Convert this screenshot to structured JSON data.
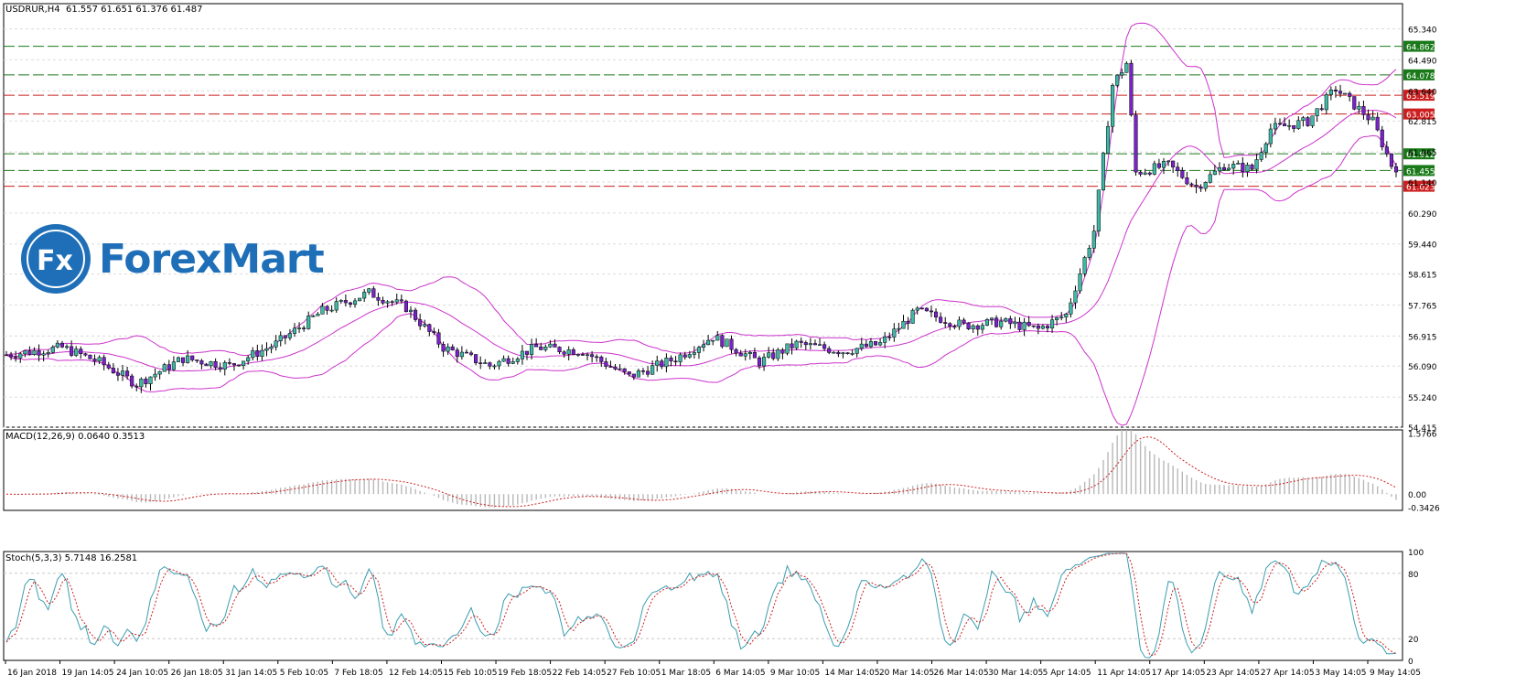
{
  "header": {
    "symbol": "USDRUR,H4",
    "ohlc": "61.557 61.651 61.376 61.487"
  },
  "logo": {
    "text": "ForexMart",
    "icon": "fx-logo-icon"
  },
  "colors": {
    "bull": "#3fb9a7",
    "bear": "#7a22c9",
    "band": "#cc33cc",
    "green_line": "#1a7a1a",
    "red_line": "#cc1f1f",
    "macd_hist": "#b8b8b8",
    "macd_signal": "#cc1f1f",
    "stoch_main": "#3b9db0",
    "stoch_signal": "#cc1f1f"
  },
  "chart_data": {
    "type": "candlestick",
    "price_axis": {
      "range": [
        54.415,
        65.73
      ],
      "ticks": [
        "65.340",
        "64.490",
        "63.640",
        "62.815",
        "61.965",
        "61.140",
        "60.290",
        "59.440",
        "58.615",
        "57.765",
        "56.915",
        "56.090",
        "55.240",
        "54.415"
      ]
    },
    "levels": [
      {
        "value": 64.862,
        "label": "64.862",
        "color": "green"
      },
      {
        "value": 64.078,
        "label": "64.078",
        "color": "green"
      },
      {
        "value": 63.519,
        "label": "63.519",
        "color": "red"
      },
      {
        "value": 63.005,
        "label": "63.005",
        "color": "red"
      },
      {
        "value": 61.912,
        "label": "61.912",
        "color": "green"
      },
      {
        "value": 61.455,
        "label": "61.455",
        "color": "green"
      },
      {
        "value": 61.023,
        "label": "61.023",
        "color": "red"
      }
    ],
    "price_keypoints": [
      [
        0,
        56.4
      ],
      [
        12,
        56.6
      ],
      [
        20,
        56.2
      ],
      [
        28,
        55.6
      ],
      [
        38,
        56.3
      ],
      [
        48,
        56.1
      ],
      [
        58,
        56.7
      ],
      [
        68,
        57.6
      ],
      [
        78,
        58.1
      ],
      [
        86,
        57.7
      ],
      [
        94,
        56.6
      ],
      [
        104,
        56.1
      ],
      [
        114,
        56.6
      ],
      [
        124,
        56.5
      ],
      [
        134,
        55.8
      ],
      [
        144,
        56.3
      ],
      [
        152,
        56.9
      ],
      [
        162,
        56.2
      ],
      [
        170,
        56.7
      ],
      [
        180,
        56.5
      ],
      [
        188,
        56.7
      ],
      [
        196,
        57.6
      ],
      [
        206,
        57.2
      ],
      [
        214,
        57.3
      ],
      [
        222,
        57.1
      ],
      [
        228,
        57.5
      ],
      [
        234,
        59.8
      ],
      [
        238,
        63.8
      ],
      [
        241,
        64.4
      ],
      [
        243,
        61.4
      ],
      [
        250,
        61.6
      ],
      [
        256,
        61.0
      ],
      [
        262,
        61.6
      ],
      [
        268,
        61.5
      ],
      [
        272,
        62.6
      ],
      [
        280,
        62.8
      ],
      [
        286,
        63.7
      ],
      [
        294,
        62.8
      ],
      [
        298,
        61.6
      ],
      [
        300,
        61.5
      ]
    ],
    "timeline": {
      "bars": 300,
      "labels": [
        "16 Jan 2018",
        "19 Jan 14:05",
        "24 Jan 10:05",
        "26 Jan 18:05",
        "31 Jan 14:05",
        "5 Feb 10:05",
        "7 Feb 18:05",
        "12 Feb 14:05",
        "15 Feb 10:05",
        "19 Feb 18:05",
        "22 Feb 14:05",
        "27 Feb 10:05",
        "1 Mar 18:05",
        "6 Mar 14:05",
        "9 Mar 10:05",
        "14 Mar 14:05",
        "20 Mar 14:05",
        "26 Mar 14:05",
        "30 Mar 14:05",
        "5 Apr 14:05",
        "11 Apr 14:05",
        "17 Apr 14:05",
        "23 Apr 14:05",
        "27 Apr 14:05",
        "3 May 14:05",
        "9 May 14:05"
      ]
    },
    "indicators": {
      "bollinger": {
        "period": 20,
        "deviation": 2
      },
      "macd": {
        "label": "MACD(12,26,9) 0.0640 0.3513",
        "axis_ticks": [
          "1.5766",
          "0.00",
          "-0.3426"
        ],
        "range": [
          -0.42,
          1.66
        ]
      },
      "stoch": {
        "label": "Stoch(5,3,3) 5.7148 16.2581",
        "axis_ticks": [
          "100",
          "80",
          "20",
          "0"
        ],
        "range": [
          0,
          100
        ]
      }
    }
  }
}
